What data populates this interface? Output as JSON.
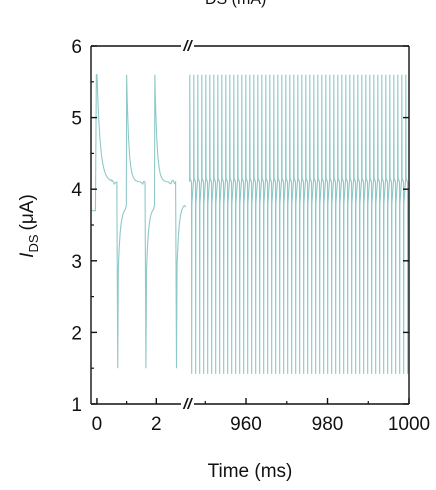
{
  "chart_data": {
    "type": "line",
    "title": "",
    "top_fragment": "DS (mA)",
    "xlabel": "Time (ms)",
    "ylabel_main": "I",
    "ylabel_sub": "DS",
    "ylabel_unit": "(μA)",
    "ylim": [
      1,
      6
    ],
    "yticks": [
      "1",
      "2",
      "3",
      "4",
      "5",
      "6"
    ],
    "x_segments": [
      {
        "xlim": [
          -0.2,
          3.0
        ],
        "ticks": [
          0,
          2
        ],
        "tick_labels": [
          "0",
          "2"
        ]
      },
      {
        "xlim": [
          946,
          1000
        ],
        "ticks": [
          960,
          980,
          1000
        ],
        "tick_labels": [
          "960",
          "980",
          "1000"
        ]
      }
    ],
    "axis_break_symbol": "//",
    "series": [
      {
        "color": "#8ec9c7",
        "baseline": 4.1,
        "spike_high": 5.6,
        "spike_low_segment1": 1.5,
        "spike_low_segment2": 1.42,
        "segment1_spike_times": [
          0.0,
          1.0,
          1.95
        ],
        "segment2_spike_count": 55
      }
    ]
  }
}
